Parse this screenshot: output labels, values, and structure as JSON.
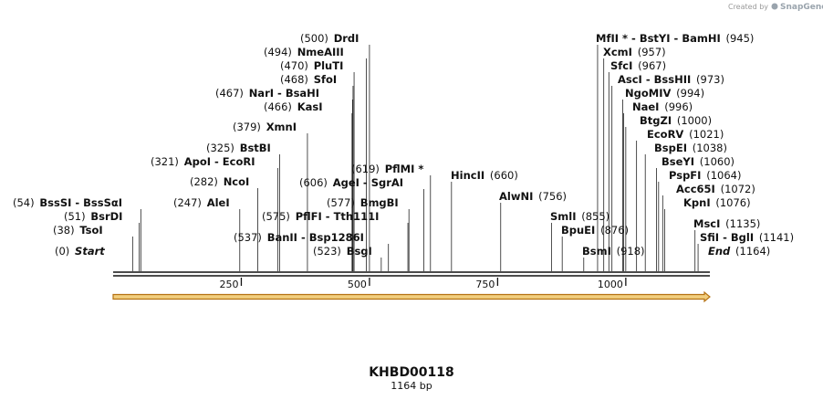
{
  "watermark": {
    "created_by": "Created by",
    "brand": "SnapGene"
  },
  "title": "KHBD00118",
  "length_label": "1164 bp",
  "sequence_length": 1164,
  "axis_ticks": [
    {
      "value": 250,
      "label": "250"
    },
    {
      "value": 500,
      "label": "500"
    },
    {
      "value": 750,
      "label": "750"
    },
    {
      "value": 1000,
      "label": "1000"
    }
  ],
  "colors": {
    "feature_fill": "#f2ce7e",
    "feature_stroke": "#b57214",
    "line": "#111111"
  },
  "features": [
    {
      "name": "orf-arrow",
      "start": 1,
      "end": 1164,
      "direction": "forward"
    }
  ],
  "left_labels": [
    {
      "pos": "(500)",
      "names": [
        "DrdI"
      ],
      "site": 500
    },
    {
      "pos": "(494)",
      "names": [
        "NmeAIII"
      ],
      "site": 494
    },
    {
      "pos": "(470)",
      "names": [
        "PluTI"
      ],
      "site": 470
    },
    {
      "pos": "(468)",
      "names": [
        "SfoI"
      ],
      "site": 468
    },
    {
      "pos": "(467)",
      "names": [
        "NarI",
        "BsaHI"
      ],
      "site": 467
    },
    {
      "pos": "(466)",
      "names": [
        "KasI"
      ],
      "site": 466
    },
    {
      "pos": "(379)",
      "names": [
        "XmnI"
      ],
      "site": 379
    },
    {
      "pos": "(325)",
      "names": [
        "BstBI"
      ],
      "site": 325
    },
    {
      "pos": "(321)",
      "names": [
        "ApoI",
        "EcoRI"
      ],
      "site": 321
    },
    {
      "pos": "(282)",
      "names": [
        "NcoI"
      ],
      "site": 282
    },
    {
      "pos": "(247)",
      "names": [
        "AleI"
      ],
      "site": 247
    },
    {
      "pos": "(54)",
      "names": [
        "BssSI",
        "BssSαI"
      ],
      "site": 54
    },
    {
      "pos": "(51)",
      "names": [
        "BsrDI"
      ],
      "site": 51
    },
    {
      "pos": "(38)",
      "names": [
        "TsoI"
      ],
      "site": 38
    },
    {
      "pos": "(0)",
      "names": [
        "Start"
      ],
      "site": 0,
      "terminal": true
    }
  ],
  "mid_labels": [
    {
      "pos": "(619)",
      "names": [
        "PflMI *"
      ],
      "site": 619
    },
    {
      "pos": "(606)",
      "names": [
        "AgeI",
        "SgrAI"
      ],
      "site": 606
    },
    {
      "pos": "(577)",
      "names": [
        "BmgBI"
      ],
      "site": 577
    },
    {
      "pos": "(575)",
      "names": [
        "PflFI",
        "Tth111I"
      ],
      "site": 575
    },
    {
      "pos": "(537)",
      "names": [
        "BanII",
        "Bsp1286I"
      ],
      "site": 537
    },
    {
      "pos": "(523)",
      "names": [
        "BsgI"
      ],
      "site": 523
    },
    {
      "pos": "(660)",
      "names": [
        "HincII"
      ],
      "site": 660
    },
    {
      "pos": "(756)",
      "names": [
        "AlwNI"
      ],
      "site": 756
    }
  ],
  "right_labels": [
    {
      "pos": "(945)",
      "names": [
        "MfII *",
        "BstYI",
        "BamHI"
      ],
      "site": 945
    },
    {
      "pos": "(957)",
      "names": [
        "XcmI"
      ],
      "site": 957
    },
    {
      "pos": "(967)",
      "names": [
        "SfcI"
      ],
      "site": 967
    },
    {
      "pos": "(973)",
      "names": [
        "AscI",
        "BssHII"
      ],
      "site": 973
    },
    {
      "pos": "(994)",
      "names": [
        "NgoMIV"
      ],
      "site": 994
    },
    {
      "pos": "(996)",
      "names": [
        "NaeI"
      ],
      "site": 996
    },
    {
      "pos": "(1000)",
      "names": [
        "BtgZI"
      ],
      "site": 1000
    },
    {
      "pos": "(1021)",
      "names": [
        "EcoRV"
      ],
      "site": 1021
    },
    {
      "pos": "(1038)",
      "names": [
        "BspEI"
      ],
      "site": 1038
    },
    {
      "pos": "(1060)",
      "names": [
        "BseYI"
      ],
      "site": 1060
    },
    {
      "pos": "(1064)",
      "names": [
        "PspFI"
      ],
      "site": 1064
    },
    {
      "pos": "(1072)",
      "names": [
        "Acc65I"
      ],
      "site": 1072
    },
    {
      "pos": "(1076)",
      "names": [
        "KpnI"
      ],
      "site": 1076
    },
    {
      "pos": "(1135)",
      "names": [
        "MscI"
      ],
      "site": 1135
    },
    {
      "pos": "(1141)",
      "names": [
        "SfiI",
        "BglI"
      ],
      "site": 1141
    },
    {
      "pos": "(1164)",
      "names": [
        "End"
      ],
      "site": 1164,
      "terminal": true
    }
  ],
  "lower_right_labels": [
    {
      "pos": "(855)",
      "names": [
        "SmlI"
      ],
      "site": 855
    },
    {
      "pos": "(876)",
      "names": [
        "BpuEI"
      ],
      "site": 876
    },
    {
      "pos": "(918)",
      "names": [
        "BsmI"
      ],
      "site": 918
    }
  ]
}
